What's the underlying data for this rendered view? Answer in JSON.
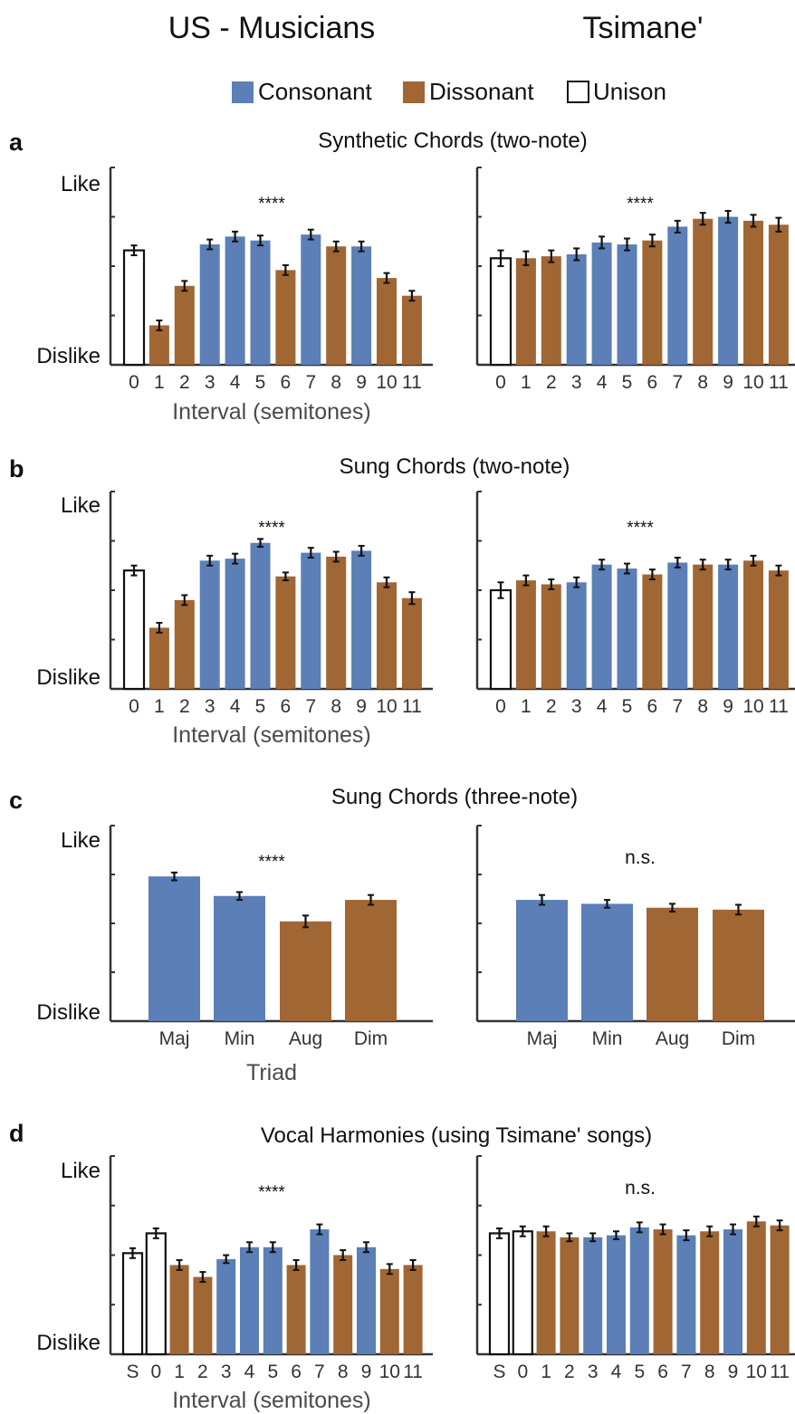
{
  "columns": [
    "US - Musicians",
    "Tsimane'"
  ],
  "legend": [
    {
      "label": "Consonant",
      "color": "#5b7fb6",
      "filled": true
    },
    {
      "label": "Dissonant",
      "color": "#a06634",
      "filled": true
    },
    {
      "label": "Unison",
      "color": "#ffffff",
      "filled": false
    }
  ],
  "colors": {
    "C": "#5b7fb6",
    "D": "#a06634",
    "U": "#ffffff",
    "axis": "#333333",
    "text": "#111111",
    "tick_text": "#333333",
    "xlabel_text": "#4a4a4a"
  },
  "y_labels": {
    "top": "Like",
    "bottom": "Dislike"
  },
  "chart_data": [
    {
      "panel": "a",
      "title": "Synthetic Chords (two-note)",
      "type": "bar",
      "ylim": [
        0,
        1
      ],
      "xlabel": "Interval (semitones)",
      "categories": [
        "0",
        "1",
        "2",
        "3",
        "4",
        "5",
        "6",
        "7",
        "8",
        "9",
        "10",
        "11"
      ],
      "kinds": [
        "U",
        "D",
        "D",
        "C",
        "C",
        "C",
        "D",
        "C",
        "D",
        "C",
        "D",
        "D"
      ],
      "series": [
        {
          "name": "US - Musicians",
          "sig": "****",
          "values": [
            0.58,
            0.2,
            0.4,
            0.61,
            0.65,
            0.63,
            0.48,
            0.66,
            0.6,
            0.6,
            0.44,
            0.35
          ],
          "errors": [
            0.025,
            0.025,
            0.025,
            0.025,
            0.025,
            0.025,
            0.025,
            0.025,
            0.025,
            0.025,
            0.025,
            0.025
          ]
        },
        {
          "name": "Tsimane'",
          "sig": "****",
          "values": [
            0.54,
            0.54,
            0.55,
            0.56,
            0.62,
            0.61,
            0.63,
            0.7,
            0.74,
            0.75,
            0.73,
            0.71
          ],
          "errors": [
            0.04,
            0.035,
            0.03,
            0.03,
            0.03,
            0.03,
            0.03,
            0.03,
            0.03,
            0.03,
            0.03,
            0.035
          ]
        }
      ]
    },
    {
      "panel": "b",
      "title": "Sung Chords (two-note)",
      "type": "bar",
      "ylim": [
        0,
        1
      ],
      "xlabel": "Interval (semitones)",
      "categories": [
        "0",
        "1",
        "2",
        "3",
        "4",
        "5",
        "6",
        "7",
        "8",
        "9",
        "10",
        "11"
      ],
      "kinds": [
        "U",
        "D",
        "D",
        "C",
        "C",
        "C",
        "D",
        "C",
        "D",
        "C",
        "D",
        "D"
      ],
      "series": [
        {
          "name": "US - Musicians",
          "sig": "****",
          "values": [
            0.6,
            0.31,
            0.45,
            0.65,
            0.66,
            0.74,
            0.57,
            0.69,
            0.67,
            0.7,
            0.54,
            0.46
          ],
          "errors": [
            0.025,
            0.025,
            0.025,
            0.025,
            0.025,
            0.02,
            0.02,
            0.025,
            0.025,
            0.025,
            0.025,
            0.03
          ]
        },
        {
          "name": "Tsimane'",
          "sig": "****",
          "values": [
            0.5,
            0.55,
            0.53,
            0.54,
            0.63,
            0.61,
            0.58,
            0.64,
            0.63,
            0.63,
            0.65,
            0.6
          ],
          "errors": [
            0.04,
            0.025,
            0.025,
            0.025,
            0.025,
            0.025,
            0.025,
            0.025,
            0.025,
            0.025,
            0.025,
            0.025
          ]
        }
      ]
    },
    {
      "panel": "c",
      "title": "Sung Chords (three-note)",
      "type": "bar",
      "ylim": [
        0,
        1
      ],
      "xlabel": "Triad",
      "categories": [
        "Maj",
        "Min",
        "Aug",
        "Dim"
      ],
      "kinds": [
        "C",
        "C",
        "D",
        "D"
      ],
      "series": [
        {
          "name": "US - Musicians",
          "sig": "****",
          "values": [
            0.74,
            0.64,
            0.51,
            0.62
          ],
          "errors": [
            0.02,
            0.02,
            0.03,
            0.025
          ]
        },
        {
          "name": "Tsimane'",
          "sig": "n.s.",
          "values": [
            0.62,
            0.6,
            0.58,
            0.57
          ],
          "errors": [
            0.025,
            0.02,
            0.02,
            0.025
          ]
        }
      ]
    },
    {
      "panel": "d",
      "title": "Vocal Harmonies (using Tsimane' songs)",
      "type": "bar",
      "ylim": [
        0,
        1
      ],
      "xlabel": "Interval (semitones)",
      "categories": [
        "S",
        "0",
        "1",
        "2",
        "3",
        "4",
        "5",
        "6",
        "7",
        "8",
        "9",
        "10",
        "11"
      ],
      "kinds": [
        "U",
        "U",
        "D",
        "D",
        "C",
        "C",
        "C",
        "D",
        "C",
        "D",
        "C",
        "D",
        "D"
      ],
      "series": [
        {
          "name": "US - Musicians",
          "sig": "****",
          "values": [
            0.51,
            0.61,
            0.45,
            0.39,
            0.48,
            0.54,
            0.54,
            0.45,
            0.63,
            0.5,
            0.54,
            0.43,
            0.45
          ],
          "errors": [
            0.025,
            0.025,
            0.025,
            0.025,
            0.02,
            0.025,
            0.025,
            0.025,
            0.025,
            0.025,
            0.025,
            0.025,
            0.025
          ]
        },
        {
          "name": "Tsimane'",
          "sig": "n.s.",
          "values": [
            0.61,
            0.62,
            0.62,
            0.59,
            0.59,
            0.6,
            0.64,
            0.63,
            0.6,
            0.62,
            0.63,
            0.67,
            0.65
          ],
          "errors": [
            0.025,
            0.025,
            0.025,
            0.02,
            0.02,
            0.02,
            0.025,
            0.025,
            0.025,
            0.025,
            0.025,
            0.025,
            0.025
          ]
        }
      ]
    }
  ]
}
